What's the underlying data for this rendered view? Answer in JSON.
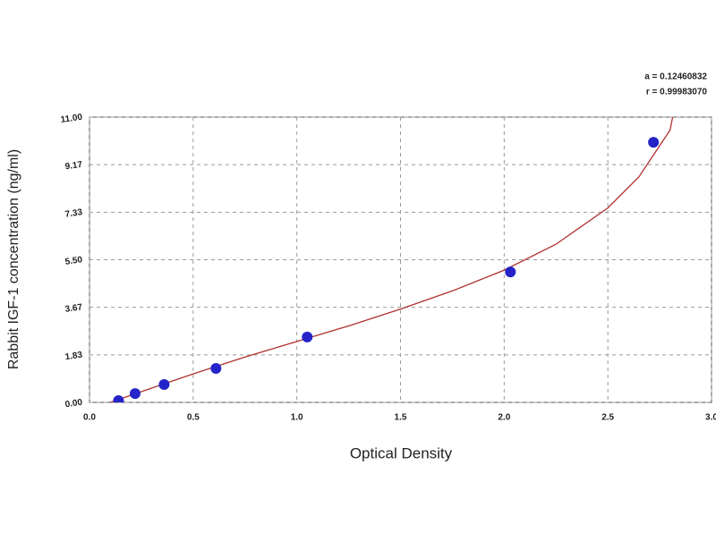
{
  "chart_data": {
    "type": "scatter",
    "x_label": "Optical Density",
    "y_label": "Rabbit IGF-1 concentration (ng/ml)",
    "annotations": [
      "a = 0.12460832",
      "r = 0.99983070"
    ],
    "xlim": [
      0,
      3
    ],
    "ylim": [
      0,
      11
    ],
    "xticks": [
      {
        "value": 0,
        "label": "0.0"
      },
      0.5,
      {
        "value": 1,
        "label": "1.0"
      },
      1.5,
      {
        "value": 2,
        "label": "2.0"
      },
      2.5,
      {
        "value": 3,
        "label": "3.0"
      }
    ],
    "yticks": [
      {
        "value": 0,
        "label": "0.00"
      },
      1.83,
      3.67,
      {
        "value": 5.5,
        "label": "5.50"
      },
      7.33,
      9.17,
      {
        "value": 11,
        "label": "11.00"
      }
    ],
    "grid": true,
    "series": [
      {
        "style": "line",
        "color": "#b03030",
        "x": [
          0.1,
          0.3,
          0.5,
          0.75,
          1.0,
          1.25,
          1.5,
          1.75,
          2.0,
          2.25,
          2.5,
          2.65,
          2.8,
          2.82
        ],
        "values": [
          0,
          0.55,
          1.1,
          1.75,
          2.35,
          2.95,
          3.6,
          4.3,
          5.1,
          6.1,
          7.5,
          8.7,
          10.5,
          11.3
        ]
      },
      {
        "style": "marker",
        "color": "#2424c8",
        "x": [
          0.14,
          0.22,
          0.36,
          0.61,
          1.05,
          2.03,
          2.72
        ],
        "values": [
          0.07,
          0.34,
          0.69,
          1.31,
          2.52,
          5.03,
          10.03
        ]
      }
    ]
  }
}
